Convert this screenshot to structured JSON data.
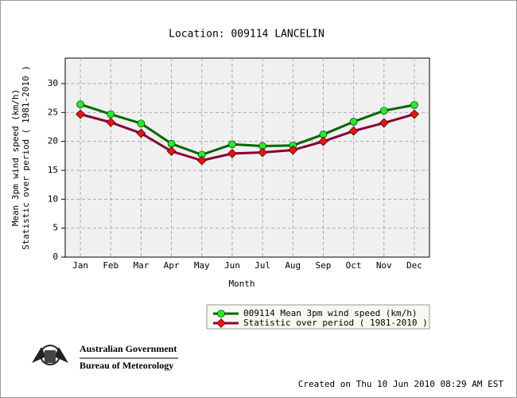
{
  "chart_data": {
    "type": "line",
    "title": "Location: 009114 LANCELIN",
    "ylabel": [
      "Mean 3pm wind speed (km/h)",
      "Statistic over period ( 1981-2010  )"
    ],
    "xlabel": "Month",
    "categories": [
      "Jan",
      "Feb",
      "Mar",
      "Apr",
      "May",
      "Jun",
      "Jul",
      "Aug",
      "Sep",
      "Oct",
      "Nov",
      "Dec"
    ],
    "series": [
      {
        "name": "009114 Mean 3pm wind speed (km/h)",
        "color": "#006600",
        "marker_color": "#22ee22",
        "marker": "circle",
        "values": [
          26.4,
          24.7,
          23.1,
          19.6,
          17.7,
          19.5,
          19.2,
          19.3,
          21.2,
          23.4,
          25.3,
          26.3
        ]
      },
      {
        "name": "Statistic over period ( 1981-2010  )",
        "color": "#880033",
        "marker_color": "#ee1111",
        "marker": "diamond",
        "values": [
          24.7,
          23.3,
          21.4,
          18.3,
          16.7,
          17.9,
          18.1,
          18.5,
          20.0,
          21.8,
          23.2,
          24.7
        ]
      }
    ],
    "ylim": [
      0,
      34.4
    ],
    "yticks": [
      0,
      5,
      10,
      15,
      20,
      25,
      30
    ],
    "grid": true
  },
  "logo": {
    "line1": "Australian Government",
    "line2": "Bureau of Meteorology"
  },
  "footer": "Created on Thu 10 Jun 2010 08:29 AM EST"
}
